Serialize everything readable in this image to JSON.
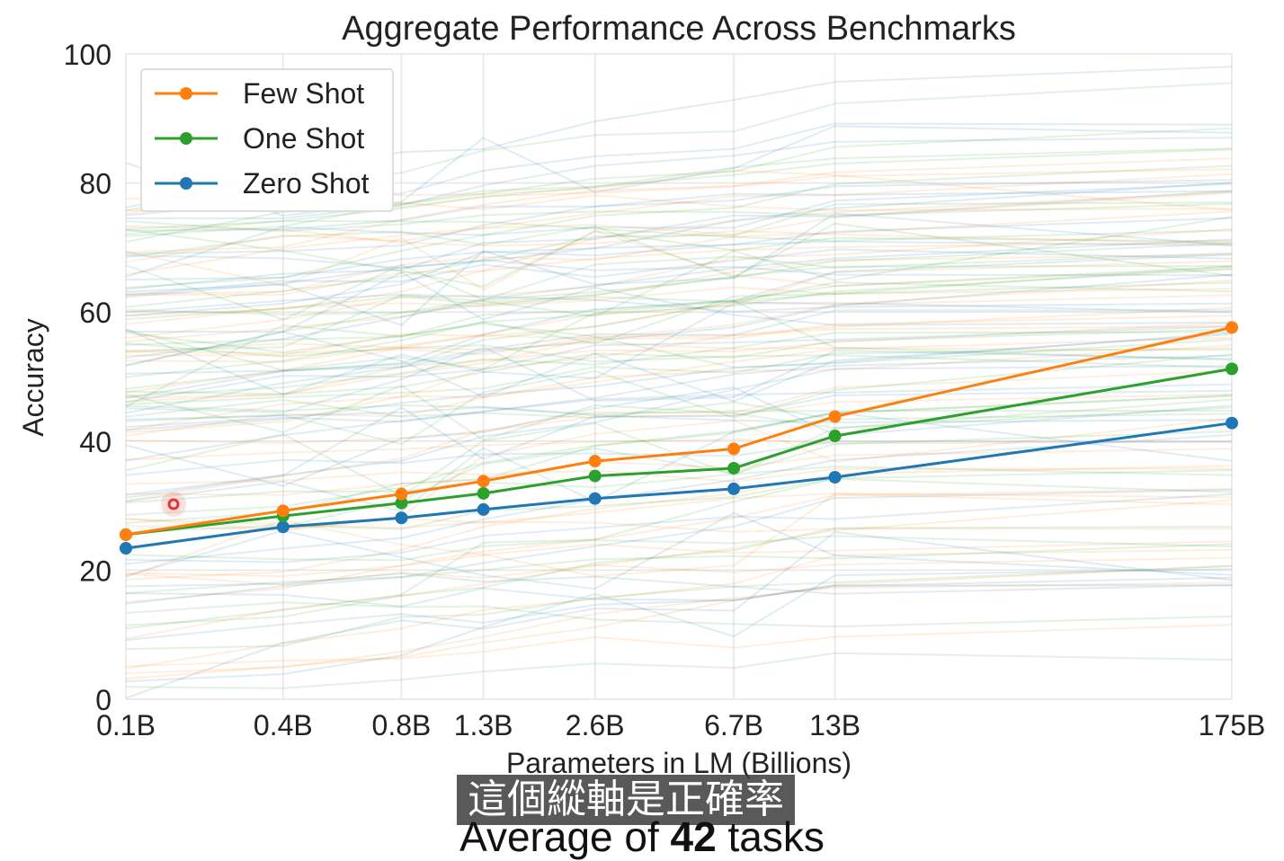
{
  "chart_data": {
    "type": "line",
    "title": "Aggregate Performance Across Benchmarks",
    "xlabel": "Parameters in LM (Billions)",
    "ylabel": "Accuracy",
    "categories": [
      "0.1B",
      "0.4B",
      "0.8B",
      "1.3B",
      "2.6B",
      "6.7B",
      "13B",
      "175B"
    ],
    "x_scale": "log",
    "x_values_billions": [
      0.125,
      0.35,
      0.76,
      1.3,
      2.7,
      6.7,
      13,
      175
    ],
    "ylim": [
      0,
      100
    ],
    "yticks": [
      "0",
      "20",
      "40",
      "60",
      "80",
      "100"
    ],
    "grid": true,
    "legend_position": "top-left",
    "series": [
      {
        "name": "Few Shot",
        "color": "#ff7f0e",
        "values": [
          25.5,
          29.2,
          31.8,
          33.8,
          36.9,
          38.8,
          43.8,
          57.6
        ]
      },
      {
        "name": "One Shot",
        "color": "#2ca02c",
        "values": [
          25.5,
          28.4,
          30.4,
          31.9,
          34.6,
          35.8,
          40.8,
          51.2
        ]
      },
      {
        "name": "Zero Shot",
        "color": "#1f77b4",
        "values": [
          23.4,
          26.7,
          28.1,
          29.4,
          31.1,
          32.6,
          34.4,
          42.8
        ]
      }
    ],
    "background_task_lines": {
      "count_per_series": 42,
      "series_colors": [
        "#ff7f0e",
        "#2ca02c",
        "#1f77b4"
      ],
      "opacity": 0.14
    }
  },
  "cursor_marker_color": "#e8322a",
  "subtitle_text": "這個縱軸是正確率",
  "caption": {
    "prefix": "Average of ",
    "number": "42",
    "suffix": " tasks"
  }
}
